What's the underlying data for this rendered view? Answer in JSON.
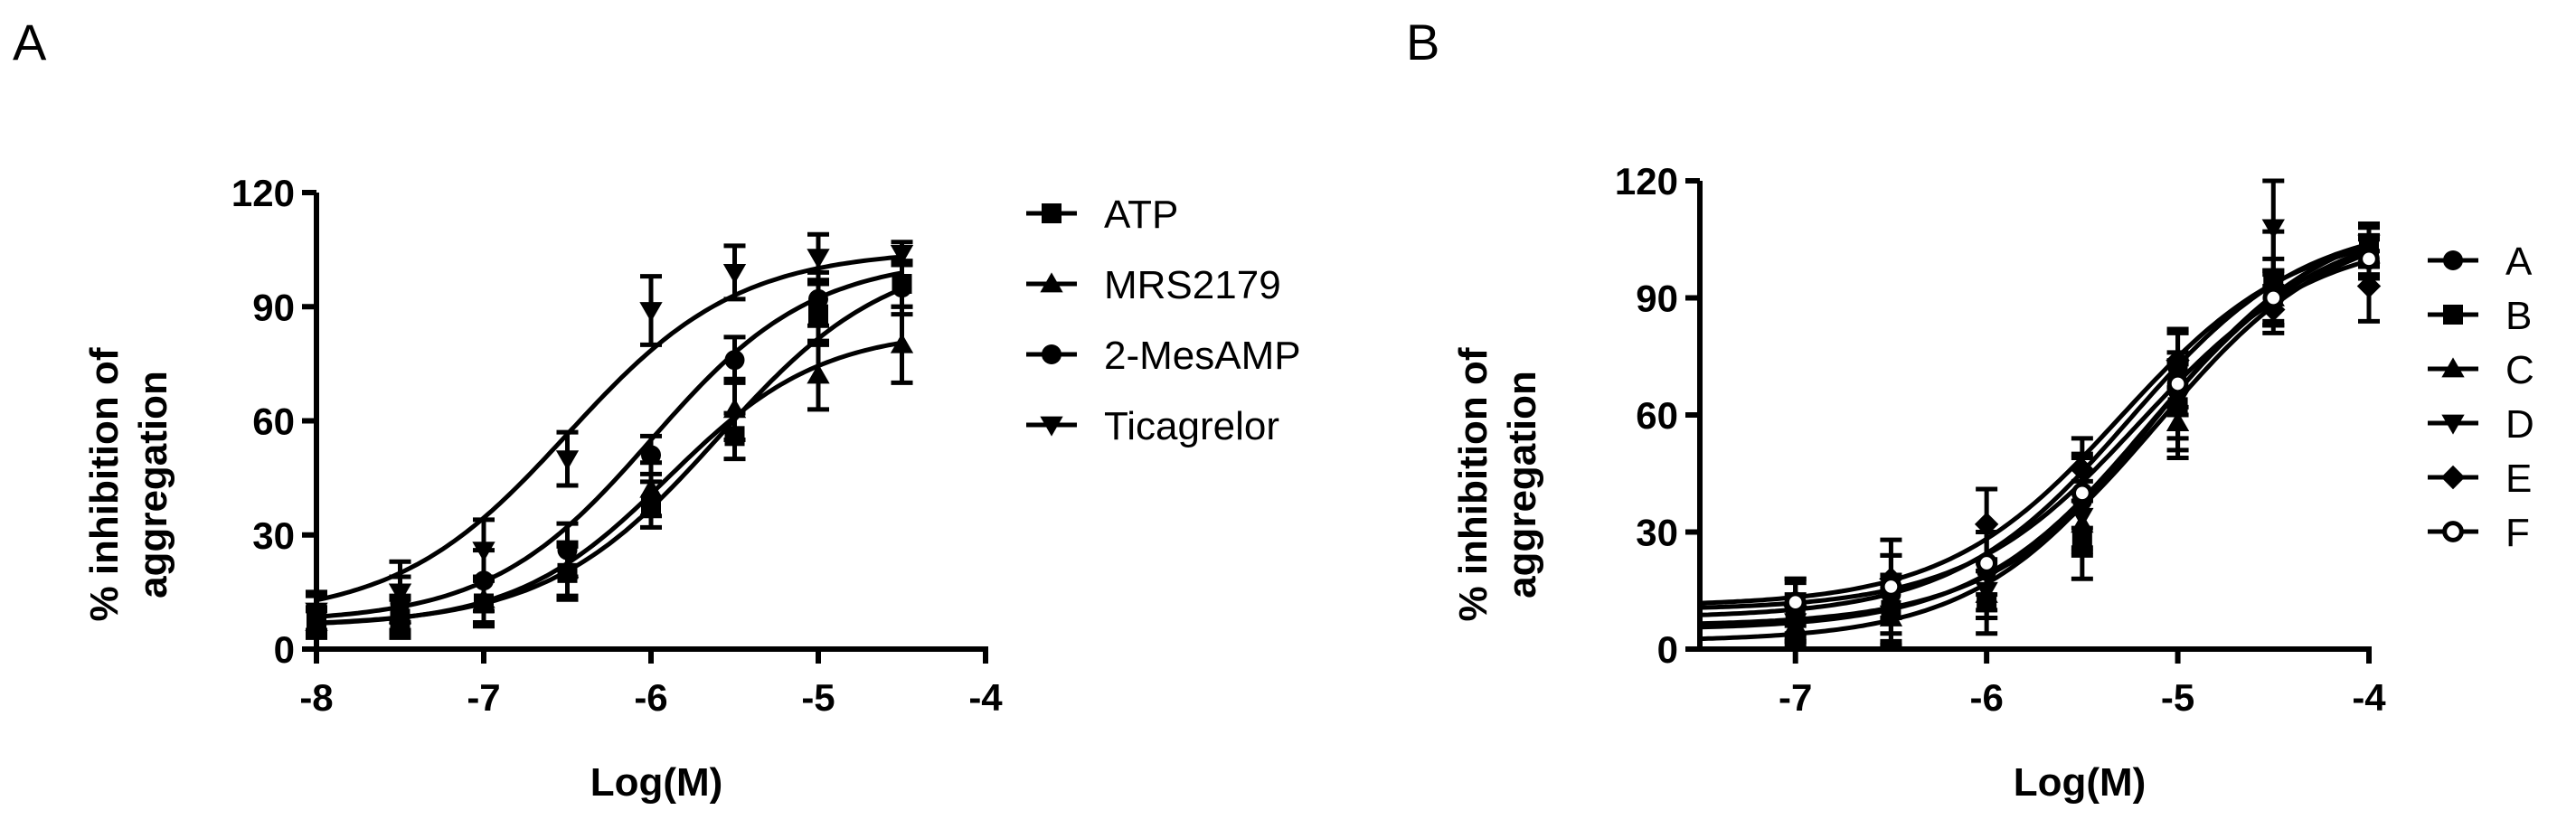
{
  "chart_data": [
    {
      "panel_label": "A",
      "type": "line",
      "xlabel": "Log(M)",
      "ylabel_lines": [
        "% inhibition of",
        "aggregation"
      ],
      "xlim": [
        -8,
        -4
      ],
      "ylim": [
        0,
        120
      ],
      "x_ticks": [
        -8,
        -7,
        -6,
        -5,
        -4
      ],
      "y_ticks": [
        0,
        30,
        60,
        90,
        120
      ],
      "grid": false,
      "legend_position": "right",
      "x": [
        -8,
        -7.5,
        -7,
        -6.5,
        -6,
        -5.5,
        -5,
        -4.5
      ],
      "series": [
        {
          "name": "ATP",
          "marker": "square",
          "ec50_log": -5.6,
          "bottom": 6,
          "top": 105,
          "hill": 0.85,
          "values": [
            7,
            8,
            12,
            20,
            38,
            56,
            88,
            96
          ],
          "errors": [
            4,
            5,
            6,
            7,
            6,
            6,
            8,
            6
          ]
        },
        {
          "name": "MRS2179",
          "marker": "triangle-up",
          "ec50_log": -5.9,
          "bottom": 6,
          "top": 84,
          "hill": 0.95,
          "values": [
            7,
            9,
            13,
            21,
            42,
            63,
            72,
            80
          ],
          "errors": [
            3,
            5,
            6,
            7,
            7,
            8,
            9,
            10
          ]
        },
        {
          "name": "2-MesAMP",
          "marker": "circle",
          "ec50_log": -6.0,
          "bottom": 7,
          "top": 103,
          "hill": 0.9,
          "values": [
            9,
            12,
            18,
            26,
            51,
            76,
            92,
            95
          ],
          "errors": [
            5,
            7,
            8,
            7,
            5,
            6,
            7,
            7
          ]
        },
        {
          "name": "Ticagrelor",
          "marker": "triangle-down",
          "ec50_log": -6.5,
          "bottom": 8,
          "top": 105,
          "hill": 0.85,
          "values": [
            10,
            15,
            26,
            50,
            89,
            99,
            103,
            104
          ],
          "errors": [
            5,
            8,
            8,
            7,
            9,
            7,
            6,
            3
          ]
        }
      ]
    },
    {
      "panel_label": "B",
      "type": "line",
      "xlabel": "Log(M)",
      "ylabel_lines": [
        "% inhibition of",
        "aggregation"
      ],
      "xlim": [
        -7.5,
        -4
      ],
      "ylim": [
        0,
        120
      ],
      "x_ticks": [
        -7,
        -6,
        -5,
        -4
      ],
      "y_ticks": [
        0,
        30,
        60,
        90,
        120
      ],
      "grid": false,
      "legend_position": "right",
      "x": [
        -7,
        -6.5,
        -6,
        -5.5,
        -5,
        -4.5,
        -4
      ],
      "series": [
        {
          "name": "A",
          "marker": "circle",
          "ec50_log": -5.25,
          "bottom": 8,
          "top": 110,
          "hill": 0.95,
          "values": [
            10,
            14,
            20,
            38,
            72,
            92,
            102
          ],
          "errors": [
            7,
            10,
            10,
            12,
            10,
            8,
            7
          ]
        },
        {
          "name": "B",
          "marker": "square",
          "ec50_log": -5.15,
          "bottom": 5,
          "top": 110,
          "hill": 0.95,
          "values": [
            8,
            10,
            12,
            28,
            62,
            95,
            103
          ],
          "errors": [
            6,
            9,
            8,
            10,
            11,
            12,
            5
          ]
        },
        {
          "name": "C",
          "marker": "triangle-up",
          "ec50_log": -5.15,
          "bottom": 2,
          "top": 112,
          "hill": 0.95,
          "values": [
            6,
            8,
            14,
            32,
            58,
            90,
            101
          ],
          "errors": [
            5,
            7,
            6,
            8,
            9,
            7,
            5
          ]
        },
        {
          "name": "D",
          "marker": "triangle-down",
          "ec50_log": -5.1,
          "bottom": 6,
          "top": 110,
          "hill": 0.95,
          "values": [
            7,
            9,
            15,
            34,
            64,
            108,
            104
          ],
          "errors": [
            5,
            7,
            7,
            9,
            10,
            12,
            5
          ]
        },
        {
          "name": "E",
          "marker": "diamond",
          "ec50_log": -5.3,
          "bottom": 11,
          "top": 108,
          "hill": 0.95,
          "values": [
            11,
            18,
            32,
            46,
            74,
            87,
            93
          ],
          "errors": [
            7,
            10,
            9,
            8,
            7,
            6,
            9
          ]
        },
        {
          "name": "F",
          "marker": "open-circle",
          "ec50_log": -5.2,
          "bottom": 10,
          "top": 106,
          "hill": 0.95,
          "values": [
            12,
            16,
            22,
            40,
            68,
            90,
            100
          ],
          "errors": [
            6,
            8,
            8,
            9,
            8,
            7,
            5
          ]
        }
      ]
    }
  ]
}
